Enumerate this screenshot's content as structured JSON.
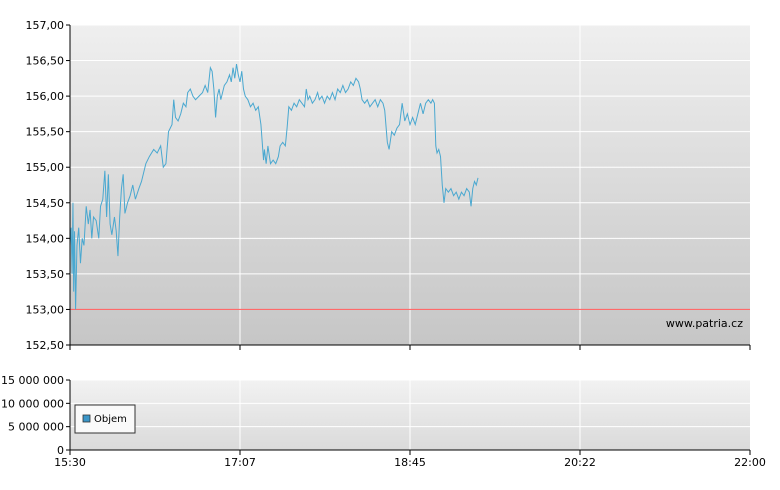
{
  "watermark": "www.patria.cz",
  "colors": {
    "price_line": "#4aa8d0",
    "reference_line": "#ff6a6a",
    "grid": "#ffffff",
    "plot_top": "#efefef",
    "plot_bottom": "#c6c6c6",
    "axis": "#000000",
    "legend_swatch": "#3a95c8"
  },
  "chart_data": [
    {
      "type": "line",
      "ylim": [
        152.5,
        157.0
      ],
      "y_ticks": [
        "152,50",
        "153,00",
        "153,50",
        "154,00",
        "154,50",
        "155,00",
        "155,50",
        "156,00",
        "156,50",
        "157,00"
      ],
      "y_tick_values": [
        152.5,
        153.0,
        153.5,
        154.0,
        154.5,
        155.0,
        155.5,
        156.0,
        156.5,
        157.0
      ],
      "x_ticks": [
        "15:30",
        "17:07",
        "18:45",
        "20:22",
        "22:00"
      ],
      "xlim_minutes": [
        930,
        1320
      ],
      "grid": true,
      "reference_line": 153.0,
      "series": [
        {
          "values": [
            [
              930,
              153.9
            ],
            [
              930.7,
              154.15
            ],
            [
              931.2,
              153.5
            ],
            [
              931.7,
              154.5
            ],
            [
              932.1,
              153.25
            ],
            [
              932.6,
              154.1
            ],
            [
              933.2,
              153.0
            ],
            [
              934.0,
              153.9
            ],
            [
              935.0,
              154.15
            ],
            [
              936.0,
              153.65
            ],
            [
              937.0,
              154.0
            ],
            [
              938.0,
              153.9
            ],
            [
              939.3,
              154.45
            ],
            [
              940.5,
              154.2
            ],
            [
              941.5,
              154.4
            ],
            [
              942.5,
              154.0
            ],
            [
              943.5,
              154.3
            ],
            [
              945.0,
              154.25
            ],
            [
              946.5,
              154.0
            ],
            [
              947.5,
              154.45
            ],
            [
              948.8,
              154.55
            ],
            [
              950.0,
              154.95
            ],
            [
              951.0,
              154.3
            ],
            [
              952.0,
              154.9
            ],
            [
              953.0,
              154.2
            ],
            [
              954.0,
              154.05
            ],
            [
              955.5,
              154.3
            ],
            [
              956.5,
              154.1
            ],
            [
              957.5,
              153.75
            ],
            [
              958.5,
              154.3
            ],
            [
              959.5,
              154.7
            ],
            [
              960.5,
              154.9
            ],
            [
              961.5,
              154.35
            ],
            [
              963.0,
              154.5
            ],
            [
              964.5,
              154.6
            ],
            [
              966.0,
              154.75
            ],
            [
              967.5,
              154.55
            ],
            [
              969.5,
              154.7
            ],
            [
              971.0,
              154.8
            ],
            [
              973.5,
              155.05
            ],
            [
              975.5,
              155.15
            ],
            [
              978.0,
              155.25
            ],
            [
              980.0,
              155.2
            ],
            [
              982.0,
              155.3
            ],
            [
              983.5,
              155.0
            ],
            [
              985.0,
              155.05
            ],
            [
              986.5,
              155.5
            ],
            [
              987.5,
              155.55
            ],
            [
              988.5,
              155.6
            ],
            [
              989.5,
              155.95
            ],
            [
              990.5,
              155.7
            ],
            [
              992.0,
              155.65
            ],
            [
              993.5,
              155.75
            ],
            [
              995.0,
              155.9
            ],
            [
              996.5,
              155.85
            ],
            [
              997.5,
              156.05
            ],
            [
              999.0,
              156.1
            ],
            [
              1000.5,
              156.0
            ],
            [
              1002.0,
              155.95
            ],
            [
              1004.0,
              156.0
            ],
            [
              1006.0,
              156.05
            ],
            [
              1007.5,
              156.15
            ],
            [
              1009.0,
              156.05
            ],
            [
              1010.5,
              156.4
            ],
            [
              1011.5,
              156.35
            ],
            [
              1012.5,
              156.1
            ],
            [
              1013.5,
              155.7
            ],
            [
              1014.5,
              156.0
            ],
            [
              1015.5,
              156.1
            ],
            [
              1016.5,
              155.95
            ],
            [
              1017.5,
              156.05
            ],
            [
              1018.5,
              156.15
            ],
            [
              1020.0,
              156.2
            ],
            [
              1021.5,
              156.3
            ],
            [
              1022.5,
              156.2
            ],
            [
              1023.5,
              156.4
            ],
            [
              1024.5,
              156.25
            ],
            [
              1025.5,
              156.45
            ],
            [
              1026.5,
              156.3
            ],
            [
              1027.5,
              156.2
            ],
            [
              1028.5,
              156.35
            ],
            [
              1029.5,
              156.1
            ],
            [
              1030.5,
              156.0
            ],
            [
              1032.0,
              155.95
            ],
            [
              1033.5,
              155.85
            ],
            [
              1035.0,
              155.9
            ],
            [
              1036.5,
              155.8
            ],
            [
              1038.0,
              155.85
            ],
            [
              1039.5,
              155.6
            ],
            [
              1041.0,
              155.1
            ],
            [
              1041.5,
              155.25
            ],
            [
              1042.5,
              155.05
            ],
            [
              1043.5,
              155.3
            ],
            [
              1045.0,
              155.05
            ],
            [
              1046.5,
              155.1
            ],
            [
              1048.0,
              155.05
            ],
            [
              1049.5,
              155.15
            ],
            [
              1050.5,
              155.3
            ],
            [
              1052.0,
              155.35
            ],
            [
              1053.5,
              155.3
            ],
            [
              1054.5,
              155.55
            ],
            [
              1055.5,
              155.85
            ],
            [
              1057.0,
              155.8
            ],
            [
              1058.5,
              155.9
            ],
            [
              1060.0,
              155.85
            ],
            [
              1061.5,
              155.95
            ],
            [
              1063.0,
              155.9
            ],
            [
              1064.5,
              155.85
            ],
            [
              1065.5,
              156.1
            ],
            [
              1066.5,
              155.95
            ],
            [
              1067.5,
              156.0
            ],
            [
              1069.0,
              155.9
            ],
            [
              1070.5,
              155.95
            ],
            [
              1072.0,
              156.05
            ],
            [
              1073.0,
              155.95
            ],
            [
              1074.5,
              156.0
            ],
            [
              1076.0,
              155.9
            ],
            [
              1077.5,
              156.0
            ],
            [
              1079.0,
              155.95
            ],
            [
              1080.5,
              156.05
            ],
            [
              1082.0,
              155.95
            ],
            [
              1083.5,
              156.1
            ],
            [
              1085.0,
              156.05
            ],
            [
              1086.5,
              156.15
            ],
            [
              1088.0,
              156.05
            ],
            [
              1089.5,
              156.1
            ],
            [
              1091.0,
              156.2
            ],
            [
              1092.5,
              156.15
            ],
            [
              1094.0,
              156.25
            ],
            [
              1095.5,
              156.2
            ],
            [
              1096.5,
              156.1
            ],
            [
              1097.5,
              155.95
            ],
            [
              1099.0,
              155.9
            ],
            [
              1100.5,
              155.95
            ],
            [
              1102.0,
              155.85
            ],
            [
              1103.5,
              155.9
            ],
            [
              1105.0,
              155.95
            ],
            [
              1106.5,
              155.85
            ],
            [
              1108.0,
              155.95
            ],
            [
              1109.5,
              155.9
            ],
            [
              1110.5,
              155.8
            ],
            [
              1111.5,
              155.5
            ],
            [
              1112.0,
              155.35
            ],
            [
              1113.0,
              155.25
            ],
            [
              1114.5,
              155.5
            ],
            [
              1116.0,
              155.45
            ],
            [
              1117.5,
              155.55
            ],
            [
              1119.0,
              155.6
            ],
            [
              1120.5,
              155.9
            ],
            [
              1122.0,
              155.65
            ],
            [
              1123.5,
              155.75
            ],
            [
              1125.0,
              155.6
            ],
            [
              1126.5,
              155.7
            ],
            [
              1128.0,
              155.6
            ],
            [
              1129.5,
              155.75
            ],
            [
              1131.0,
              155.9
            ],
            [
              1132.5,
              155.75
            ],
            [
              1134.0,
              155.9
            ],
            [
              1135.5,
              155.95
            ],
            [
              1137.0,
              155.9
            ],
            [
              1138.0,
              155.95
            ],
            [
              1139.0,
              155.9
            ],
            [
              1139.8,
              155.3
            ],
            [
              1140.5,
              155.2
            ],
            [
              1141.5,
              155.25
            ],
            [
              1142.5,
              155.15
            ],
            [
              1143.5,
              154.75
            ],
            [
              1144.5,
              154.5
            ],
            [
              1145.5,
              154.7
            ],
            [
              1147.0,
              154.65
            ],
            [
              1148.5,
              154.7
            ],
            [
              1150.0,
              154.6
            ],
            [
              1151.5,
              154.65
            ],
            [
              1153.0,
              154.55
            ],
            [
              1154.5,
              154.65
            ],
            [
              1156.0,
              154.6
            ],
            [
              1157.5,
              154.7
            ],
            [
              1159.0,
              154.65
            ],
            [
              1160.0,
              154.45
            ],
            [
              1161.0,
              154.7
            ],
            [
              1162.0,
              154.8
            ],
            [
              1163.0,
              154.75
            ],
            [
              1164.0,
              154.85
            ]
          ]
        }
      ]
    },
    {
      "type": "bar",
      "ylim": [
        0,
        15000000
      ],
      "y_ticks": [
        "0",
        "5 000 000",
        "10 000 000",
        "15 000 000"
      ],
      "y_tick_values": [
        0,
        5000000,
        10000000,
        15000000
      ],
      "x_ticks": [
        "15:30",
        "17:07",
        "18:45",
        "20:22",
        "22:00"
      ],
      "grid": true,
      "legend": {
        "position": "bottom-left",
        "entries": [
          "Objem"
        ]
      },
      "series": [
        {
          "name": "Objem",
          "values": []
        }
      ]
    }
  ]
}
